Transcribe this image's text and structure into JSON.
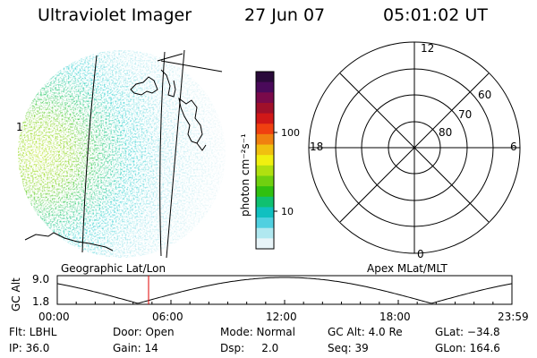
{
  "header": {
    "title": "Ultraviolet Imager",
    "date": "27 Jun 07",
    "time": "05:01:02 UT"
  },
  "imager": {
    "grid_label": "Geographic Lat/Lon",
    "edge_label": "1"
  },
  "colorbar": {
    "axis_label": "photon cm⁻²s⁻¹",
    "tick_100": "100",
    "tick_10": "10",
    "colors": [
      "#2a0a3a",
      "#4a0a5a",
      "#7a0a4a",
      "#a0102a",
      "#d01818",
      "#f04010",
      "#f08010",
      "#f0c010",
      "#f0f010",
      "#b0e010",
      "#70d010",
      "#30c010",
      "#10c070",
      "#10c0c0",
      "#50d0e0",
      "#b0e8f0",
      "#e8f4f8"
    ]
  },
  "polar": {
    "grid_label": "Apex MLat/MLT",
    "mlt_12": "12",
    "mlt_18": "18",
    "mlt_6": "6",
    "mlt_0": "0",
    "lat_60": "60",
    "lat_70": "70",
    "lat_80": "80"
  },
  "timeline": {
    "y_label": "GC Alt",
    "y_max": "9.0",
    "y_min": "1.8",
    "ticks": [
      "00:00",
      "06:00",
      "12:00",
      "18:00",
      "23:59"
    ]
  },
  "info": {
    "filter": "Flt: LBHL",
    "door": "Door: Open",
    "mode": "Mode: Normal",
    "gc_alt": "GC Alt: 4.0 Re",
    "glat": "GLat: −34.8",
    "ip": "IP: 36.0",
    "gain": "Gain: 14",
    "dsp": "Dsp:     2.0",
    "seq": "Seq: 39",
    "glon": "GLon: 164.6"
  }
}
